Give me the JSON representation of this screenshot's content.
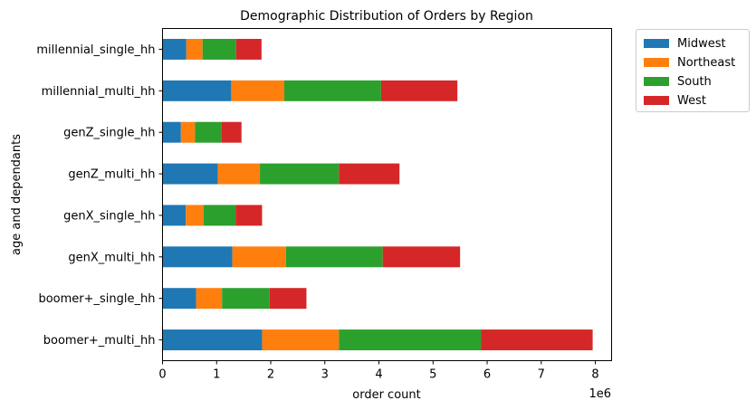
{
  "chart_data": {
    "type": "bar",
    "orientation": "horizontal",
    "stacked": true,
    "title": "Demographic Distribution of Orders by Region",
    "xlabel": "order count",
    "ylabel": "age and dependants",
    "x_offset_label": "1e6",
    "xlim": [
      0,
      8.3
    ],
    "x_ticks": [
      "0",
      "1",
      "2",
      "3",
      "4",
      "5",
      "6",
      "7",
      "8"
    ],
    "grid": false,
    "legend_position": "outside top-right",
    "categories": [
      "boomer+_multi_hh",
      "boomer+_single_hh",
      "genX_multi_hh",
      "genX_single_hh",
      "genZ_multi_hh",
      "genZ_single_hh",
      "millennial_multi_hh",
      "millennial_single_hh"
    ],
    "series": [
      {
        "name": "Midwest",
        "color": "#1f77b4",
        "values": [
          1.84,
          0.62,
          1.29,
          0.43,
          1.02,
          0.34,
          1.27,
          0.44
        ]
      },
      {
        "name": "Northeast",
        "color": "#ff7f0e",
        "values": [
          1.42,
          0.48,
          0.99,
          0.33,
          0.78,
          0.26,
          0.98,
          0.3
        ]
      },
      {
        "name": "South",
        "color": "#2ca02c",
        "values": [
          2.63,
          0.88,
          1.79,
          0.59,
          1.46,
          0.49,
          1.79,
          0.62
        ]
      },
      {
        "name": "West",
        "color": "#d62728",
        "values": [
          2.06,
          0.68,
          1.43,
          0.49,
          1.12,
          0.37,
          1.41,
          0.47
        ]
      }
    ]
  }
}
